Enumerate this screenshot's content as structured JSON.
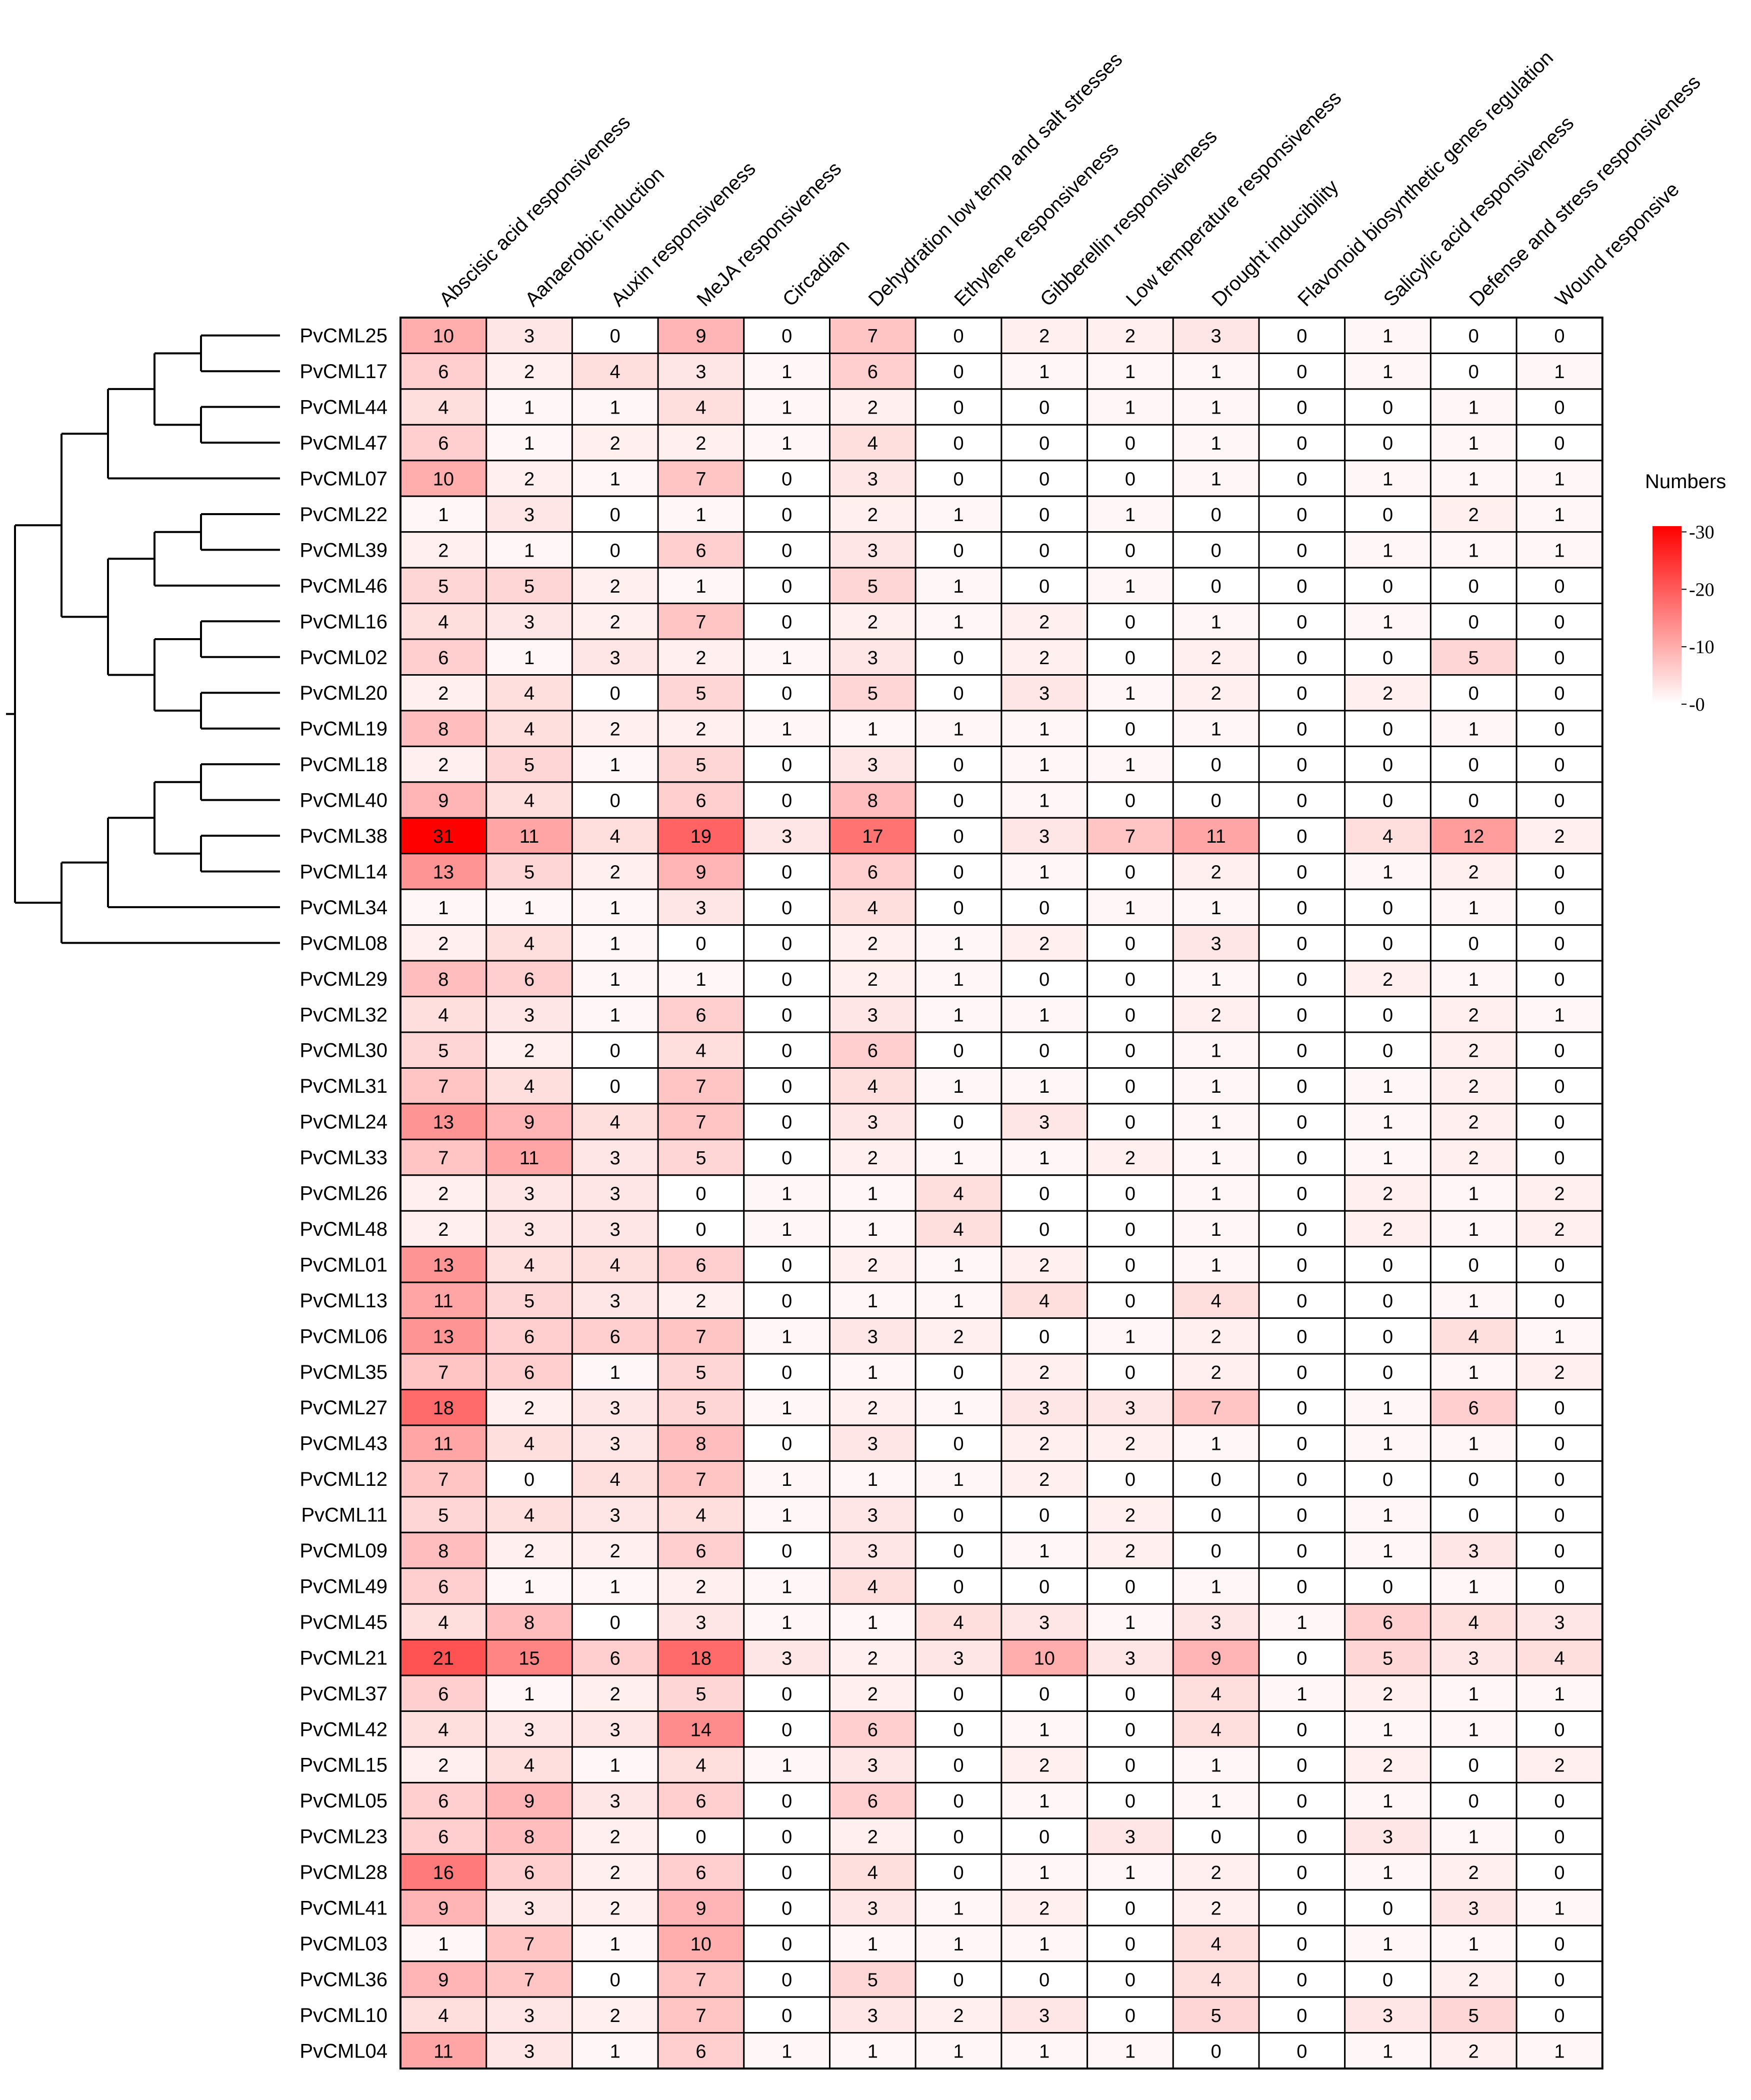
{
  "chart_data": {
    "type": "heatmap",
    "title": "",
    "columns": [
      "Abscisic acid responsiveness",
      "Aanaerobic induction",
      "Auxin responsiveness",
      "MeJA responsiveness",
      "Circadian",
      "Dehydration low temp and salt stresses",
      "Ethylene responsiveness",
      "Gibberellin responsiveness",
      "Low temperature responsiveness",
      "Drought inducibility",
      "Flavonoid biosynthetic genes regulation",
      "Salicylic acid responsiveness",
      "Defense and stress responsiveness",
      "Wound responsive"
    ],
    "rows": [
      {
        "name": "PvCML25",
        "values": [
          10,
          3,
          0,
          9,
          0,
          7,
          0,
          2,
          2,
          3,
          0,
          1,
          0,
          0
        ]
      },
      {
        "name": "PvCML17",
        "values": [
          6,
          2,
          4,
          3,
          1,
          6,
          0,
          1,
          1,
          1,
          0,
          1,
          0,
          1
        ]
      },
      {
        "name": "PvCML44",
        "values": [
          4,
          1,
          1,
          4,
          1,
          2,
          0,
          0,
          1,
          1,
          0,
          0,
          1,
          0
        ]
      },
      {
        "name": "PvCML47",
        "values": [
          6,
          1,
          2,
          2,
          1,
          4,
          0,
          0,
          0,
          1,
          0,
          0,
          1,
          0
        ]
      },
      {
        "name": "PvCML07",
        "values": [
          10,
          2,
          1,
          7,
          0,
          3,
          0,
          0,
          0,
          1,
          0,
          1,
          1,
          1
        ]
      },
      {
        "name": "PvCML22",
        "values": [
          1,
          3,
          0,
          1,
          0,
          2,
          1,
          0,
          1,
          0,
          0,
          0,
          2,
          1
        ]
      },
      {
        "name": "PvCML39",
        "values": [
          2,
          1,
          0,
          6,
          0,
          3,
          0,
          0,
          0,
          0,
          0,
          1,
          1,
          1
        ]
      },
      {
        "name": "PvCML46",
        "values": [
          5,
          5,
          2,
          1,
          0,
          5,
          1,
          0,
          1,
          0,
          0,
          0,
          0,
          0
        ]
      },
      {
        "name": "PvCML16",
        "values": [
          4,
          3,
          2,
          7,
          0,
          2,
          1,
          2,
          0,
          1,
          0,
          1,
          0,
          0
        ]
      },
      {
        "name": "PvCML02",
        "values": [
          6,
          1,
          3,
          2,
          1,
          3,
          0,
          2,
          0,
          2,
          0,
          0,
          5,
          0
        ]
      },
      {
        "name": "PvCML20",
        "values": [
          2,
          4,
          0,
          5,
          0,
          5,
          0,
          3,
          1,
          2,
          0,
          2,
          0,
          0
        ]
      },
      {
        "name": "PvCML19",
        "values": [
          8,
          4,
          2,
          2,
          1,
          1,
          1,
          1,
          0,
          1,
          0,
          0,
          1,
          0
        ]
      },
      {
        "name": "PvCML18",
        "values": [
          2,
          5,
          1,
          5,
          0,
          3,
          0,
          1,
          1,
          0,
          0,
          0,
          0,
          0
        ]
      },
      {
        "name": "PvCML40",
        "values": [
          9,
          4,
          0,
          6,
          0,
          8,
          0,
          1,
          0,
          0,
          0,
          0,
          0,
          0
        ]
      },
      {
        "name": "PvCML38",
        "values": [
          31,
          11,
          4,
          19,
          3,
          17,
          0,
          3,
          7,
          11,
          0,
          4,
          12,
          2
        ]
      },
      {
        "name": "PvCML14",
        "values": [
          13,
          5,
          2,
          9,
          0,
          6,
          0,
          1,
          0,
          2,
          0,
          1,
          2,
          0
        ]
      },
      {
        "name": "PvCML34",
        "values": [
          1,
          1,
          1,
          3,
          0,
          4,
          0,
          0,
          1,
          1,
          0,
          0,
          1,
          0
        ]
      },
      {
        "name": "PvCML08",
        "values": [
          2,
          4,
          1,
          0,
          0,
          2,
          1,
          2,
          0,
          3,
          0,
          0,
          0,
          0
        ]
      },
      {
        "name": "PvCML29",
        "values": [
          8,
          6,
          1,
          1,
          0,
          2,
          1,
          0,
          0,
          1,
          0,
          2,
          1,
          0
        ]
      },
      {
        "name": "PvCML32",
        "values": [
          4,
          3,
          1,
          6,
          0,
          3,
          1,
          1,
          0,
          2,
          0,
          0,
          2,
          1
        ]
      },
      {
        "name": "PvCML30",
        "values": [
          5,
          2,
          0,
          4,
          0,
          6,
          0,
          0,
          0,
          1,
          0,
          0,
          2,
          0
        ]
      },
      {
        "name": "PvCML31",
        "values": [
          7,
          4,
          0,
          7,
          0,
          4,
          1,
          1,
          0,
          1,
          0,
          1,
          2,
          0
        ]
      },
      {
        "name": "PvCML24",
        "values": [
          13,
          9,
          4,
          7,
          0,
          3,
          0,
          3,
          0,
          1,
          0,
          1,
          2,
          0
        ]
      },
      {
        "name": "PvCML33",
        "values": [
          7,
          11,
          3,
          5,
          0,
          2,
          1,
          1,
          2,
          1,
          0,
          1,
          2,
          0
        ]
      },
      {
        "name": "PvCML26",
        "values": [
          2,
          3,
          3,
          0,
          1,
          1,
          4,
          0,
          0,
          1,
          0,
          2,
          1,
          2
        ]
      },
      {
        "name": "PvCML48",
        "values": [
          2,
          3,
          3,
          0,
          1,
          1,
          4,
          0,
          0,
          1,
          0,
          2,
          1,
          2
        ]
      },
      {
        "name": "PvCML01",
        "values": [
          13,
          4,
          4,
          6,
          0,
          2,
          1,
          2,
          0,
          1,
          0,
          0,
          0,
          0
        ]
      },
      {
        "name": "PvCML13",
        "values": [
          11,
          5,
          3,
          2,
          0,
          1,
          1,
          4,
          0,
          4,
          0,
          0,
          1,
          0
        ]
      },
      {
        "name": "PvCML06",
        "values": [
          13,
          6,
          6,
          7,
          1,
          3,
          2,
          0,
          1,
          2,
          0,
          0,
          4,
          1
        ]
      },
      {
        "name": "PvCML35",
        "values": [
          7,
          6,
          1,
          5,
          0,
          1,
          0,
          2,
          0,
          2,
          0,
          0,
          1,
          2
        ]
      },
      {
        "name": "PvCML27",
        "values": [
          18,
          2,
          3,
          5,
          1,
          2,
          1,
          3,
          3,
          7,
          0,
          1,
          6,
          0
        ]
      },
      {
        "name": "PvCML43",
        "values": [
          11,
          4,
          3,
          8,
          0,
          3,
          0,
          2,
          2,
          1,
          0,
          1,
          1,
          0
        ]
      },
      {
        "name": "PvCML12",
        "values": [
          7,
          0,
          4,
          7,
          1,
          1,
          1,
          2,
          0,
          0,
          0,
          0,
          0,
          0
        ]
      },
      {
        "name": "PvCML11",
        "values": [
          5,
          4,
          3,
          4,
          1,
          3,
          0,
          0,
          2,
          0,
          0,
          1,
          0,
          0
        ]
      },
      {
        "name": "PvCML09",
        "values": [
          8,
          2,
          2,
          6,
          0,
          3,
          0,
          1,
          2,
          0,
          0,
          1,
          3,
          0
        ]
      },
      {
        "name": "PvCML49",
        "values": [
          6,
          1,
          1,
          2,
          1,
          4,
          0,
          0,
          0,
          1,
          0,
          0,
          1,
          0
        ]
      },
      {
        "name": "PvCML45",
        "values": [
          4,
          8,
          0,
          3,
          1,
          1,
          4,
          3,
          1,
          3,
          1,
          6,
          4,
          3
        ]
      },
      {
        "name": "PvCML21",
        "values": [
          21,
          15,
          6,
          18,
          3,
          2,
          3,
          10,
          3,
          9,
          0,
          5,
          3,
          4
        ]
      },
      {
        "name": "PvCML37",
        "values": [
          6,
          1,
          2,
          5,
          0,
          2,
          0,
          0,
          0,
          4,
          1,
          2,
          1,
          1
        ]
      },
      {
        "name": "PvCML42",
        "values": [
          4,
          3,
          3,
          14,
          0,
          6,
          0,
          1,
          0,
          4,
          0,
          1,
          1,
          0
        ]
      },
      {
        "name": "PvCML15",
        "values": [
          2,
          4,
          1,
          4,
          1,
          3,
          0,
          2,
          0,
          1,
          0,
          2,
          0,
          2
        ]
      },
      {
        "name": "PvCML05",
        "values": [
          6,
          9,
          3,
          6,
          0,
          6,
          0,
          1,
          0,
          1,
          0,
          1,
          0,
          0
        ]
      },
      {
        "name": "PvCML23",
        "values": [
          6,
          8,
          2,
          0,
          0,
          2,
          0,
          0,
          3,
          0,
          0,
          3,
          1,
          0
        ]
      },
      {
        "name": "PvCML28",
        "values": [
          16,
          6,
          2,
          6,
          0,
          4,
          0,
          1,
          1,
          2,
          0,
          1,
          2,
          0
        ]
      },
      {
        "name": "PvCML41",
        "values": [
          9,
          3,
          2,
          9,
          0,
          3,
          1,
          2,
          0,
          2,
          0,
          0,
          3,
          1
        ]
      },
      {
        "name": "PvCML03",
        "values": [
          1,
          7,
          1,
          10,
          0,
          1,
          1,
          1,
          0,
          4,
          0,
          1,
          1,
          0
        ]
      },
      {
        "name": "PvCML36",
        "values": [
          9,
          7,
          0,
          7,
          0,
          5,
          0,
          0,
          0,
          4,
          0,
          0,
          2,
          0
        ]
      },
      {
        "name": "PvCML10",
        "values": [
          4,
          3,
          2,
          7,
          0,
          3,
          2,
          3,
          0,
          5,
          0,
          3,
          5,
          0
        ]
      },
      {
        "name": "PvCML04",
        "values": [
          11,
          3,
          1,
          6,
          1,
          1,
          1,
          1,
          1,
          0,
          0,
          1,
          2,
          1
        ]
      }
    ],
    "color_scale": {
      "min": 0,
      "max": 31,
      "low_color": "#ffffff",
      "high_color": "#ff0000"
    },
    "legend": {
      "title": "Numbers",
      "ticks": [
        30,
        20,
        10,
        0
      ],
      "placement": "right"
    },
    "dendrogram": {
      "side": "left",
      "clusters": [
        [
          [
            [
              [
                "PvCML25",
                "PvCML17"
              ],
              [
                "PvCML44",
                "PvCML47"
              ]
            ],
            "PvCML07"
          ],
          [
            [
              [
                "PvCML22",
                "PvCML39"
              ],
              "PvCML46"
            ],
            [
              [
                "PvCML16",
                "PvCML02"
              ],
              [
                "PvCML20",
                "PvCML19"
              ]
            ]
          ]
        ],
        [
          [
            [
              [
                "PvCML18",
                "PvCML40"
              ],
              [
                "PvCML38",
                "PvCML14"
              ]
            ],
            "PvCML34"
          ],
          "PvCML08"
        ]
      ]
    }
  }
}
